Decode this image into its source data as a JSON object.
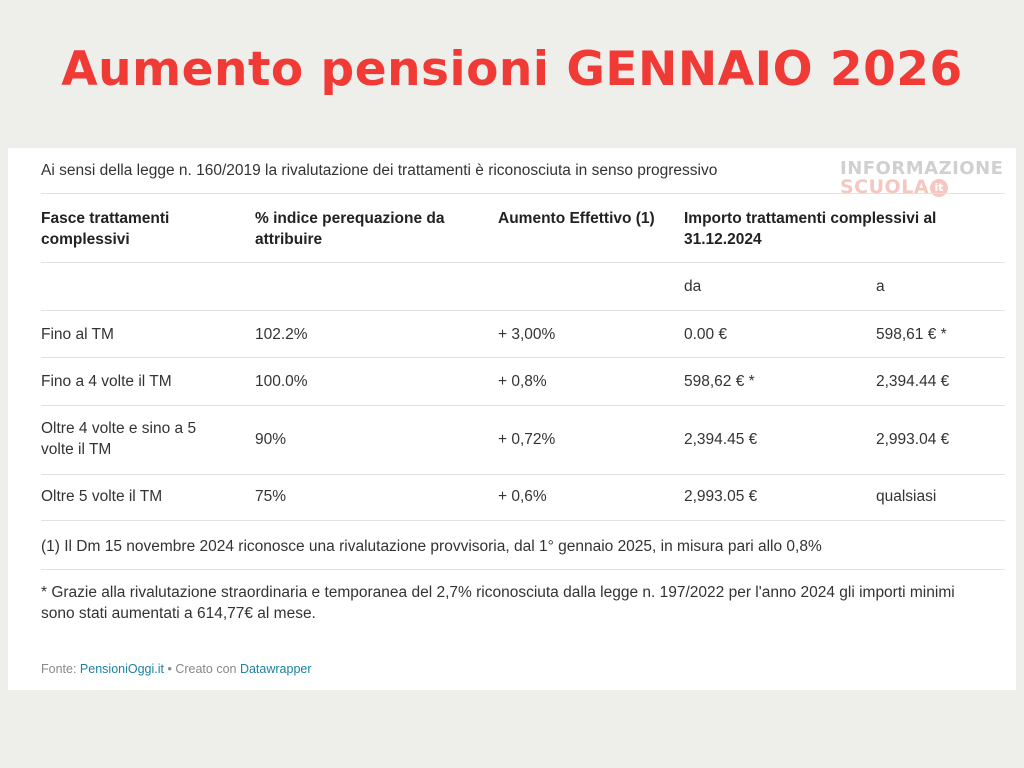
{
  "headline": "Aumento pensioni GENNAIO 2026",
  "intro": "Ai sensi della legge n. 160/2019 la rivalutazione dei trattamenti è riconosciuta in senso progressivo",
  "watermark": {
    "line1": "INFORMAZIONE",
    "line2": "SCUOLA",
    "suffix": "it"
  },
  "table": {
    "headers": [
      "Fasce trattamenti complessivi",
      "% indice perequazione da attribuire",
      "Aumento Effettivo (1)",
      "Importo trattamenti complessivi al 31.12.2024"
    ],
    "subheaders": {
      "from": "da",
      "to": "a"
    },
    "rows": [
      {
        "fascia": "Fino al TM",
        "indice": "102.2%",
        "aumento": "+ 3,00%",
        "da": "0.00 €",
        "a": "598,61 € *"
      },
      {
        "fascia": "Fino a 4 volte il TM",
        "indice": "100.0%",
        "aumento": "+ 0,8%",
        "da": "598,62 € *",
        "a": "2,394.44 €"
      },
      {
        "fascia": "Oltre 4 volte e sino a 5 volte il TM",
        "indice": "90%",
        "aumento": "+ 0,72%",
        "da": "2,394.45 €",
        "a": "2,993.04 €"
      },
      {
        "fascia": "Oltre 5 volte il TM",
        "indice": "75%",
        "aumento": "+ 0,6%",
        "da": "2,993.05 €",
        "a": "qualsiasi"
      }
    ]
  },
  "notes": {
    "note1": "(1) Il Dm 15 novembre 2024 riconosce una rivalutazione provvisoria, dal 1° gennaio 2025, in misura pari allo 0,8%",
    "note2": "* Grazie alla rivalutazione straordinaria e temporanea del 2,7% riconosciuta dalla legge n. 197/2022 per l'anno 2024 gli importi minimi sono stati aumentati a 614,77€ al mese."
  },
  "source": {
    "prefix": "Fonte: ",
    "source_link": "PensioniOggi.it",
    "middle": " • Creato con ",
    "tool_link": "Datawrapper"
  }
}
